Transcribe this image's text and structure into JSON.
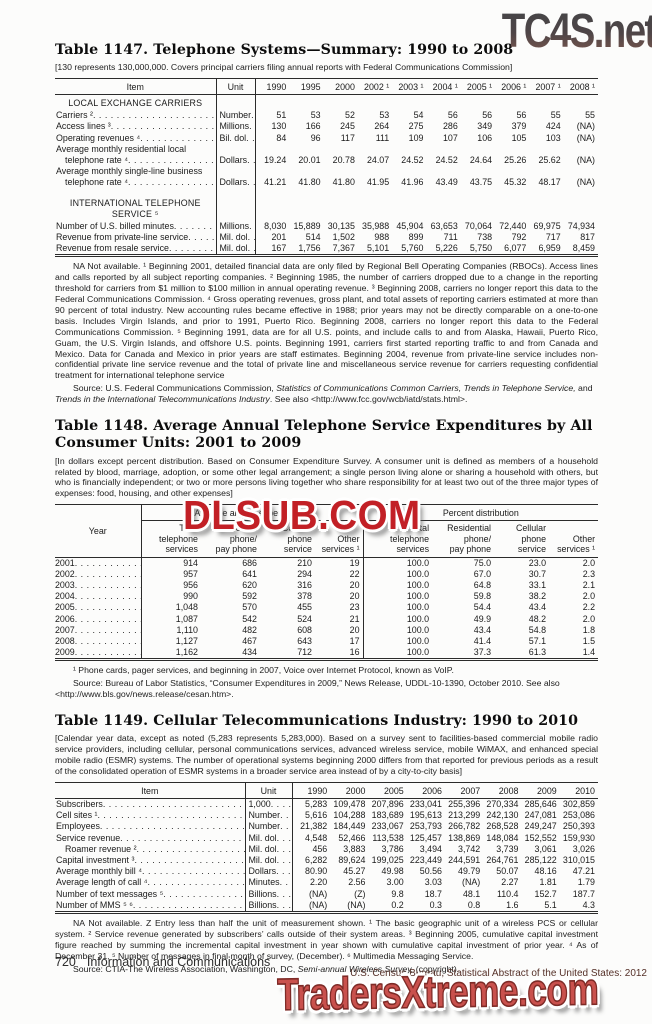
{
  "watermarks": {
    "top": "TC4S.net",
    "middle": "DLSUB.COM",
    "bottom": "TradersXtreme.com"
  },
  "footer": {
    "page_number": "720",
    "section": "Information and Communications",
    "attribution": "U.S. Census Bureau, Statistical Abstract of the United States: 2012"
  },
  "table1147": {
    "title": "Table 1147. Telephone Systems—Summary: 1990 to 2008",
    "note": "[130 represents 130,000,000. Covers principal carriers filing annual reports with Federal Communications Commission]",
    "item_header": "Item",
    "unit_header": "Unit",
    "years": [
      "1990",
      "1995",
      "2000",
      "2002 ¹",
      "2003 ¹",
      "2004 ¹",
      "2005 ¹",
      "2006 ¹",
      "2007 ¹",
      "2008 ¹"
    ],
    "rows": [
      {
        "section": [
          "LOCAL EXCHANGE CARRIERS"
        ]
      },
      {
        "label": [
          "Carriers ²"
        ],
        "unit": "Number",
        "values": [
          "51",
          "53",
          "52",
          "53",
          "54",
          "56",
          "56",
          "56",
          "55",
          "55"
        ]
      },
      {
        "label": [
          "Access lines ³"
        ],
        "unit": "Millions",
        "values": [
          "130",
          "166",
          "245",
          "264",
          "275",
          "286",
          "349",
          "379",
          "424",
          "(NA)"
        ]
      },
      {
        "label": [
          "Operating revenues ⁴"
        ],
        "unit": "Bil. dol",
        "values": [
          "84",
          "96",
          "117",
          "111",
          "109",
          "107",
          "106",
          "105",
          "103",
          "(NA)"
        ]
      },
      {
        "label": [
          "Average monthly residential local",
          "telephone rate ⁴"
        ],
        "unit": "Dollars",
        "values": [
          "19.24",
          "20.01",
          "20.78",
          "24.07",
          "24.52",
          "24.52",
          "24.64",
          "25.26",
          "25.62",
          "(NA)"
        ]
      },
      {
        "label": [
          "Average monthly single-line business",
          "telephone rate ⁴"
        ],
        "unit": "Dollars",
        "values": [
          "41.21",
          "41.80",
          "41.80",
          "41.95",
          "41.96",
          "43.49",
          "43.75",
          "45.32",
          "48.17",
          "(NA)"
        ]
      },
      {
        "section": [
          "INTERNATIONAL TELEPHONE",
          "SERVICE ⁵"
        ],
        "gap": true
      },
      {
        "label": [
          "Number of U.S. billed minutes"
        ],
        "unit": "Millions",
        "values": [
          "8,030",
          "15,889",
          "30,135",
          "35,988",
          "45,904",
          "63,653",
          "70,064",
          "72,440",
          "69,975",
          "74,934"
        ]
      },
      {
        "label": [
          "Revenue from private-line service"
        ],
        "unit": "Mil. dol",
        "values": [
          "201",
          "514",
          "1,502",
          "988",
          "899",
          "711",
          "738",
          "792",
          "717",
          "817"
        ]
      },
      {
        "label": [
          "Revenue from resale service"
        ],
        "unit": "Mil. dol",
        "values": [
          "167",
          "1,756",
          "7,367",
          "5,101",
          "5,760",
          "5,226",
          "5,750",
          "6,077",
          "6,959",
          "8,459"
        ]
      }
    ],
    "footnote": "NA Not available. ¹ Beginning 2001, detailed financial data are only filed by Regional Bell Operating Companies (RBOCs). Access lines and calls reported by all subject reporting companies. ² Beginning 1985, the number of carriers dropped due to a change in the reporting threshold for carriers from $1 million to $100 million in annual operating revenue. ³ Beginning 2008, carriers no longer report this data to the Federal Communications Commission. ⁴ Gross operating revenues, gross plant, and total assets of reporting carriers estimated at more than 90 percent of total industry. New accounting rules became effective in 1988; prior years may not be directly comparable on a one-to-one basis. Includes Virgin Islands, and prior to 1991, Puerto Rico. Beginning 2008, carriers no longer report this data to the Federal Communications Commission. ⁵ Beginning 1991, data are for all U.S. points, and include calls to and from Alaska,  Hawaii, Puerto Rico, Guam, the U.S. Virgin Islands,  and offshore U.S. points. Beginning 1991, carriers first started reporting traffic to and from Canada and Mexico. Data for Canada and Mexico in prior years are staff estimates. Beginning 2004, revenue from  private-line service includes non-confidential private line service revenue and the total of private line and miscellaneous service revenue for carriers requesting confidential treatment for international telephone service",
    "source": [
      {
        "t": "Source: U.S. Federal Communications Commission, "
      },
      {
        "t": "Statistics of Communications Common Carriers, Trends in Telephone Service,",
        "i": true
      },
      {
        "t": " and "
      },
      {
        "t": "Trends in the International Telecommunications Industry",
        "i": true
      },
      {
        "t": ". See also <http://www.fcc.gov/wcb/iatd/stats.html>."
      }
    ]
  },
  "table1148": {
    "title": "Table 1148. Average Annual Telephone Service Expenditures by All Consumer Units: 2001 to 2009",
    "note": "[In dollars except percent distribution. Based on Consumer Expenditure Survey. A consumer unit is defined as members of a household related by blood, marriage, adoption, or some other legal arrangement; a single person living alone or sharing a household with others, but who is financially independent; or two or more persons living together who share responsibility for at least two out of the three major types of expenses: food, housing, and other expenses]",
    "year_header": "Year",
    "groups": [
      "Average annual expenditures",
      "Percent distribution"
    ],
    "sub_headers": [
      [
        "Total",
        "telephone",
        "services"
      ],
      [
        "Residential",
        "phone/",
        "pay phone"
      ],
      [
        "Cellular",
        "phone",
        "service"
      ],
      [
        "Other",
        "services ¹"
      ],
      [
        "Total",
        "telephone",
        "services"
      ],
      [
        "Residential",
        "phone/",
        "pay phone"
      ],
      [
        "Cellular",
        "phone",
        "service"
      ],
      [
        "Other",
        "services ¹"
      ]
    ],
    "rows": [
      {
        "year": "2001",
        "values": [
          "914",
          "686",
          "210",
          "19",
          "100.0",
          "75.0",
          "23.0",
          "2.0"
        ]
      },
      {
        "year": "2002",
        "values": [
          "957",
          "641",
          "294",
          "22",
          "100.0",
          "67.0",
          "30.7",
          "2.3"
        ]
      },
      {
        "year": "2003",
        "values": [
          "956",
          "620",
          "316",
          "20",
          "100.0",
          "64.8",
          "33.1",
          "2.1"
        ]
      },
      {
        "year": "2004",
        "values": [
          "990",
          "592",
          "378",
          "20",
          "100.0",
          "59.8",
          "38.2",
          "2.0"
        ]
      },
      {
        "year": "2005",
        "values": [
          "1,048",
          "570",
          "455",
          "23",
          "100.0",
          "54.4",
          "43.4",
          "2.2"
        ]
      },
      {
        "year": "2006",
        "values": [
          "1,087",
          "542",
          "524",
          "21",
          "100.0",
          "49.9",
          "48.2",
          "2.0"
        ]
      },
      {
        "year": "2007",
        "values": [
          "1,110",
          "482",
          "608",
          "20",
          "100.0",
          "43.4",
          "54.8",
          "1.8"
        ]
      },
      {
        "year": "2008",
        "values": [
          "1,127",
          "467",
          "643",
          "17",
          "100.0",
          "41.4",
          "57.1",
          "1.5"
        ]
      },
      {
        "year": "2009",
        "values": [
          "1,162",
          "434",
          "712",
          "16",
          "100.0",
          "37.3",
          "61.3",
          "1.4"
        ]
      }
    ],
    "footnote": "¹ Phone cards, pager services, and beginning in 2007, Voice over Internet Protocol, known as VoIP.",
    "source": [
      {
        "t": "Source: Bureau of Labor Statistics, “Consumer Expenditures in 2009,” News Release, UDDL-10-1390, October 2010. See also <http://www.bls.gov/news.release/cesan.htm>."
      }
    ]
  },
  "table1149": {
    "title": "Table 1149. Cellular Telecommunications Industry: 1990 to 2010",
    "note": "[Calendar year data, except as noted (5,283 represents 5,283,000). Based on a survey sent to facilities-based commercial mobile radio service providers, including cellular, personal communications services, advanced wireless service, mobile WiMAX, and enhanced special mobile radio (ESMR) systems. The number of operational systems beginning 2000 differs from that reported for previous periods as a  result of the consolidated operation of ESMR systems in a broader service area instead of by a city-to-city basis]",
    "item_header": "Item",
    "unit_header": "Unit",
    "years": [
      "1990",
      "2000",
      "2005",
      "2006",
      "2007",
      "2008",
      "2009",
      "2010"
    ],
    "rows": [
      {
        "label": [
          "Subscribers"
        ],
        "unit": "1,000",
        "values": [
          "5,283",
          "109,478",
          "207,896",
          "233,041",
          "255,396",
          "270,334",
          "285,646",
          "302,859"
        ]
      },
      {
        "label": [
          "Cell sites ¹"
        ],
        "unit": "Number",
        "values": [
          "5,616",
          "104,288",
          "183,689",
          "195,613",
          "213,299",
          "242,130",
          "247,081",
          "253,086"
        ]
      },
      {
        "label": [
          "Employees"
        ],
        "unit": "Number",
        "values": [
          "21,382",
          "184,449",
          "233,067",
          "253,793",
          "266,782",
          "268,528",
          "249,247",
          "250,393"
        ]
      },
      {
        "label": [
          "Service revenue"
        ],
        "unit": "Mil. dol",
        "values": [
          "4,548",
          "52,466",
          "113,538",
          "125,457",
          "138,869",
          "148,084",
          "152,552",
          "159,930"
        ]
      },
      {
        "label": [
          "Roamer revenue ²"
        ],
        "indent": true,
        "unit": "Mil. dol",
        "values": [
          "456",
          "3,883",
          "3,786",
          "3,494",
          "3,742",
          "3,739",
          "3,061",
          "3,026"
        ]
      },
      {
        "label": [
          "Capital investment ³"
        ],
        "unit": "Mil. dol",
        "values": [
          "6,282",
          "89,624",
          "199,025",
          "223,449",
          "244,591",
          "264,761",
          "285,122",
          "310,015"
        ]
      },
      {
        "label": [
          "Average monthly bill ⁴"
        ],
        "unit": "Dollars",
        "values": [
          "80.90",
          "45.27",
          "49.98",
          "50.56",
          "49.79",
          "50.07",
          "48.16",
          "47.21"
        ]
      },
      {
        "label": [
          "Average length of call ⁴"
        ],
        "unit": "Minutes",
        "values": [
          "2.20",
          "2.56",
          "3.00",
          "3.03",
          "(NA)",
          "2.27",
          "1.81",
          "1.79"
        ]
      },
      {
        "label": [
          "Number of text messages ⁵"
        ],
        "unit": "Billions",
        "values": [
          "(NA)",
          "(Z)",
          "9.8",
          "18.7",
          "48.1",
          "110.4",
          "152.7",
          "187.7"
        ]
      },
      {
        "label": [
          "Number of MMS ⁵ ⁶"
        ],
        "unit": "Billions",
        "values": [
          "(NA)",
          "(NA)",
          "0.2",
          "0.3",
          "0.8",
          "1.6",
          "5.1",
          "4.3"
        ]
      }
    ],
    "footnote": "NA Not available. Z Entry less than half the unit of measurement shown. ¹ The basic geographic unit of a wireless PCS or cellular system.  ² Service revenue generated by subscribers’ calls outside of their  system areas. ³ Beginning 2005, cumulative capital investment figure reached by summing the incremental capital investment in year shown with cumulative capital investment of prior year. ⁴ As of December 31. ⁵ Number of messages in final month of survey, (December). ⁶ Multimedia Messaging Service.",
    "source": [
      {
        "t": "Source: CTIA-The Wireless Association, Washington, DC, "
      },
      {
        "t": "Semi-annual Wireless Survey,",
        "i": true
      },
      {
        "t": " (copyright)."
      }
    ]
  }
}
